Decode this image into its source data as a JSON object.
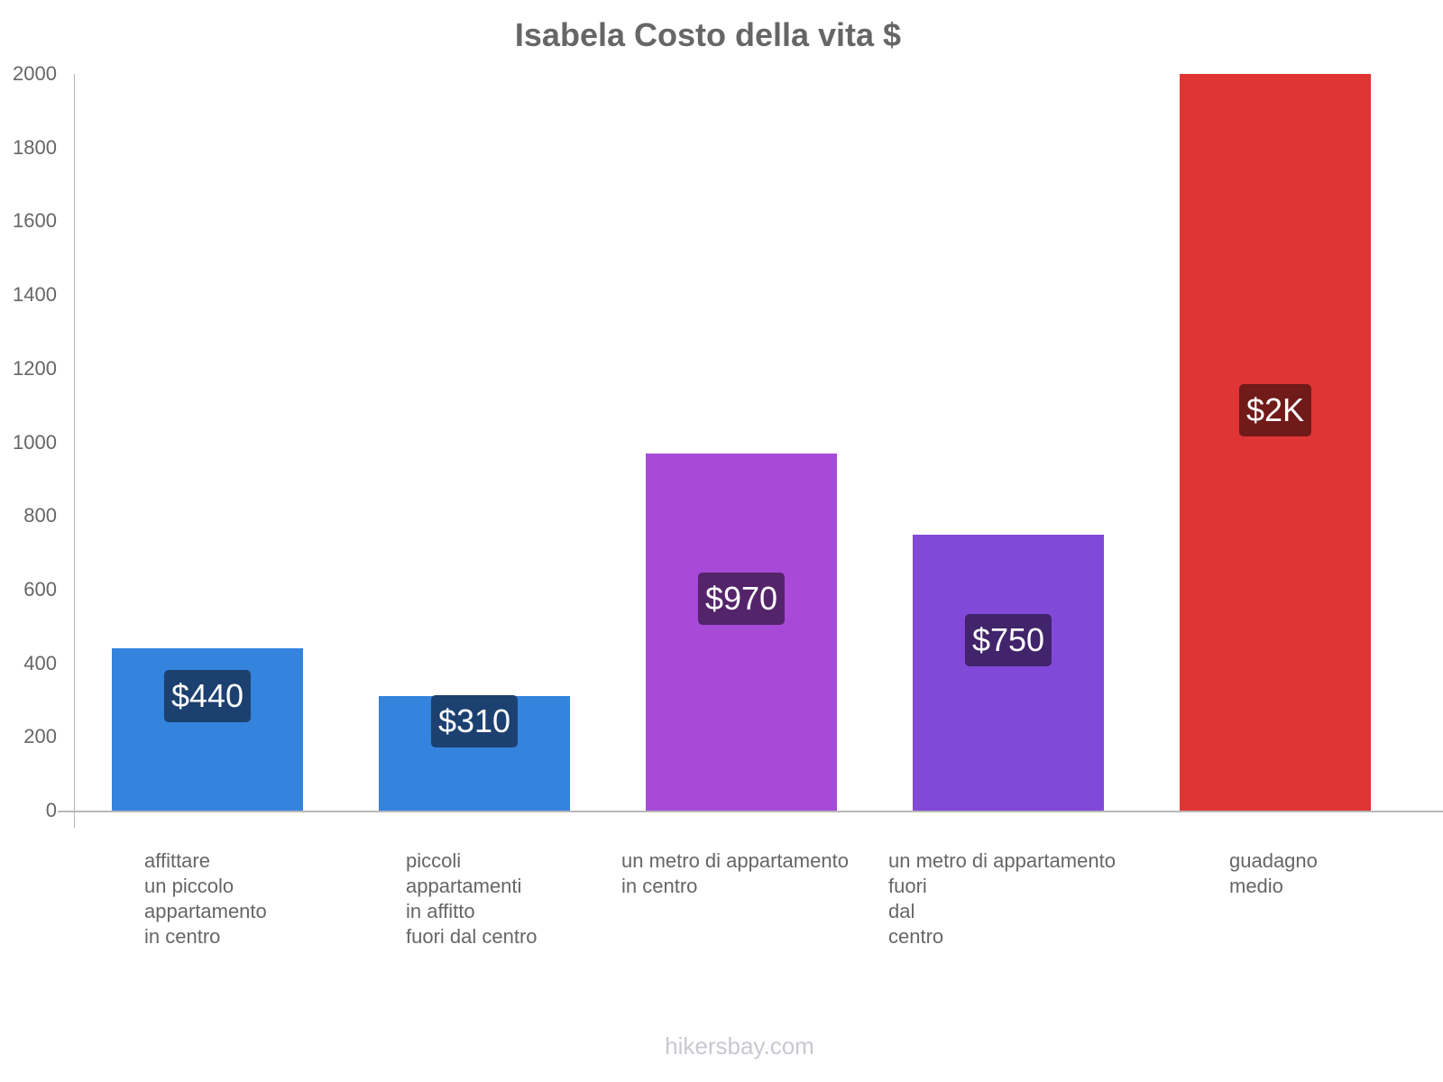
{
  "title": "Isabela Costo della vita $",
  "footer": "hikersbay.com",
  "y_ticks": [
    "0",
    "200",
    "400",
    "600",
    "800",
    "1000",
    "1200",
    "1400",
    "1600",
    "1800",
    "2000"
  ],
  "bars": [
    {
      "label_lines": [
        "affittare",
        "un piccolo",
        "appartamento",
        "in centro"
      ],
      "value": 440,
      "display": "$440",
      "color": "#3483dd",
      "label_bg": "#1c4170"
    },
    {
      "label_lines": [
        "piccoli",
        "appartamenti",
        "in affitto",
        "fuori dal centro"
      ],
      "value": 310,
      "display": "$310",
      "color": "#3483dd",
      "label_bg": "#1c4170"
    },
    {
      "label_lines": [
        "un metro di appartamento",
        "in centro"
      ],
      "value": 970,
      "display": "$970",
      "color": "#a84ad8",
      "label_bg": "#54246b"
    },
    {
      "label_lines": [
        "un metro di appartamento",
        "fuori",
        "dal",
        "centro"
      ],
      "value": 750,
      "display": "$750",
      "color": "#8249d8",
      "label_bg": "#41246c"
    },
    {
      "label_lines": [
        "guadagno",
        "medio"
      ],
      "value": 2000,
      "display": "$2K",
      "color": "#e03535",
      "label_bg": "#701a1a"
    }
  ],
  "chart_data": {
    "type": "bar",
    "title": "Isabela Costo della vita $",
    "categories": [
      "affittare un piccolo appartamento in centro",
      "piccoli appartamenti in affitto fuori dal centro",
      "un metro di appartamento in centro",
      "un metro di appartamento fuori dal centro",
      "guadagno medio"
    ],
    "values": [
      440,
      310,
      970,
      750,
      2000
    ],
    "data_labels": [
      "$440",
      "$310",
      "$970",
      "$750",
      "$2K"
    ],
    "colors": [
      "#3483dd",
      "#3483dd",
      "#a84ad8",
      "#8249d8",
      "#e03535"
    ],
    "xlabel": "",
    "ylabel": "",
    "ylim": [
      0,
      2000
    ],
    "yticks": [
      0,
      200,
      400,
      600,
      800,
      1000,
      1200,
      1400,
      1600,
      1800,
      2000
    ],
    "grid": false,
    "legend": "none"
  }
}
